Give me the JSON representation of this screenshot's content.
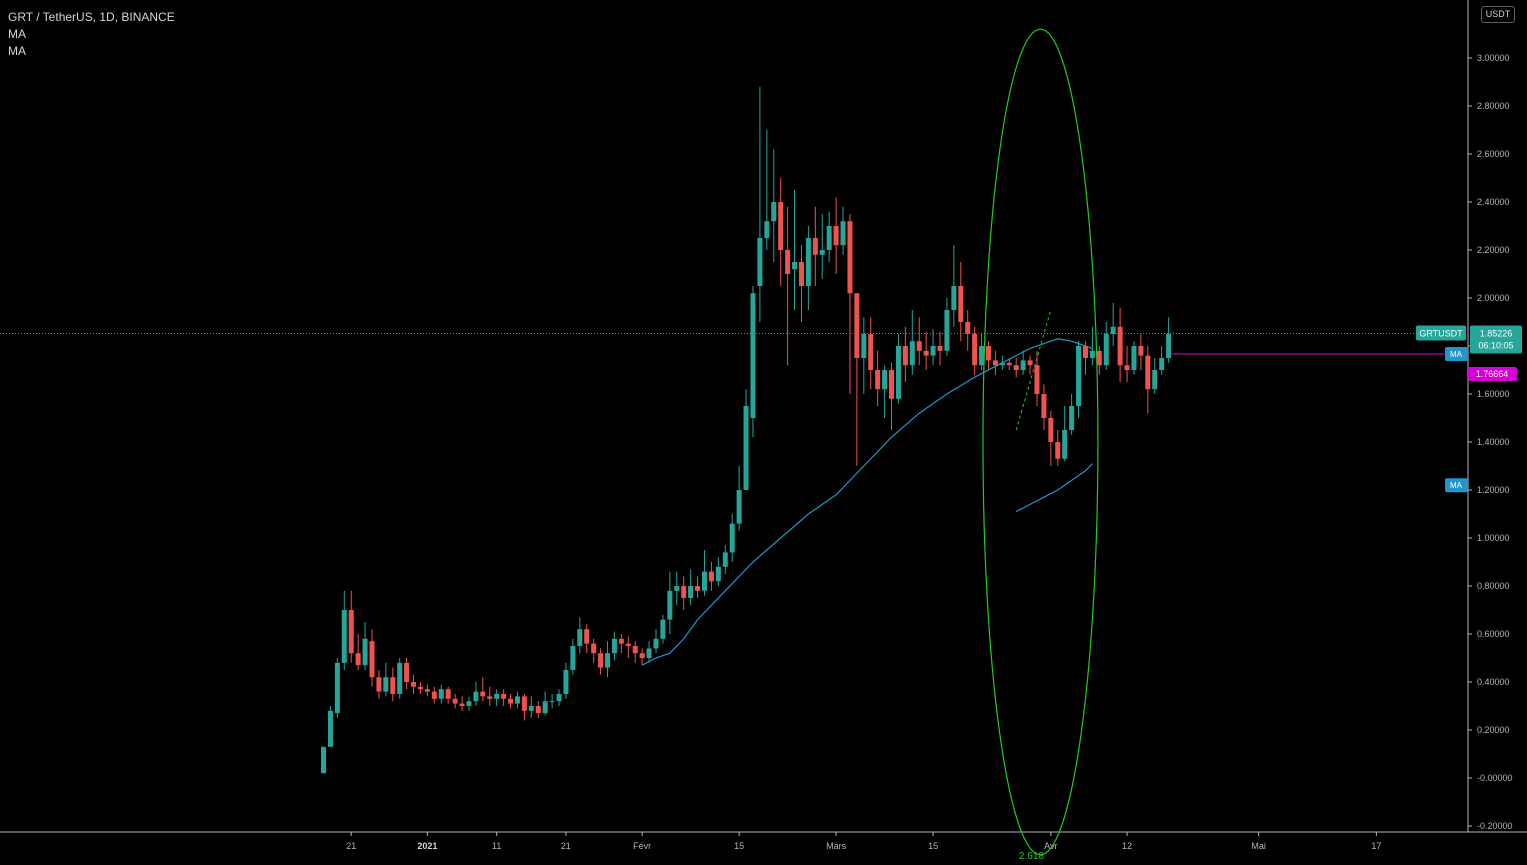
{
  "legend": {
    "symbol": "GRT / TetherUS, 1D, BINANCE",
    "ma1": "MA",
    "ma2": "MA"
  },
  "currency": "USDT",
  "price_label": {
    "symbol": "GRTUSDT",
    "price": "1.85226",
    "countdown": "06:10:05"
  },
  "ma_labels": {
    "ma_fast": "MA",
    "ma_fast_value": "1.76664",
    "ma_slow": "MA"
  },
  "annotation": {
    "fib_label": "2.618"
  },
  "colors": {
    "background": "#000000",
    "up": "#26a69a",
    "down": "#ef5350",
    "ma_line": "#2196c8",
    "ma_fast": "#d500d5",
    "ellipse": "#22cc22",
    "grid_dotted": "#26a69a",
    "axis_text": "#b2b5be"
  },
  "chart_data": {
    "type": "candlestick",
    "title": "GRT / TetherUS, 1D, BINANCE",
    "xlabel": "",
    "ylabel": "USDT",
    "ylim": [
      -0.22,
      3.22
    ],
    "grid": false,
    "y_ticks": [
      "3.00000",
      "2.80000",
      "2.60000",
      "2.40000",
      "2.20000",
      "2.00000",
      "1.80000",
      "1.60000",
      "1.40000",
      "1.20000",
      "1.00000",
      "0.80000",
      "0.60000",
      "0.40000",
      "0.20000",
      "-0.00000",
      "-0.20000"
    ],
    "x_ticks": [
      {
        "label": "21",
        "day": 4
      },
      {
        "label": "2021",
        "day": 15
      },
      {
        "label": "11",
        "day": 25
      },
      {
        "label": "21",
        "day": 35
      },
      {
        "label": "Févr",
        "day": 46
      },
      {
        "label": "15",
        "day": 60
      },
      {
        "label": "Mars",
        "day": 74
      },
      {
        "label": "15",
        "day": 88
      },
      {
        "label": "Avr",
        "day": 105
      },
      {
        "label": "12",
        "day": 116
      },
      {
        "label": "Mai",
        "day": 135
      },
      {
        "label": "17",
        "day": 152
      }
    ],
    "last_price": 1.85226,
    "ma_fast_last": 1.76664,
    "candles": [
      [
        0.02,
        0.13,
        0.13,
        0.02
      ],
      [
        0.13,
        0.28,
        0.3,
        0.13
      ],
      [
        0.27,
        0.48,
        0.5,
        0.25
      ],
      [
        0.48,
        0.7,
        0.78,
        0.45
      ],
      [
        0.7,
        0.52,
        0.78,
        0.48
      ],
      [
        0.52,
        0.47,
        0.6,
        0.45
      ],
      [
        0.47,
        0.58,
        0.65,
        0.45
      ],
      [
        0.57,
        0.42,
        0.62,
        0.38
      ],
      [
        0.42,
        0.36,
        0.45,
        0.33
      ],
      [
        0.36,
        0.42,
        0.48,
        0.34
      ],
      [
        0.42,
        0.35,
        0.46,
        0.32
      ],
      [
        0.35,
        0.48,
        0.5,
        0.33
      ],
      [
        0.48,
        0.4,
        0.5,
        0.37
      ],
      [
        0.4,
        0.38,
        0.43,
        0.35
      ],
      [
        0.38,
        0.37,
        0.4,
        0.35
      ],
      [
        0.37,
        0.36,
        0.39,
        0.34
      ],
      [
        0.36,
        0.33,
        0.38,
        0.31
      ],
      [
        0.33,
        0.37,
        0.39,
        0.31
      ],
      [
        0.37,
        0.33,
        0.38,
        0.31
      ],
      [
        0.33,
        0.31,
        0.35,
        0.29
      ],
      [
        0.31,
        0.3,
        0.34,
        0.28
      ],
      [
        0.3,
        0.32,
        0.34,
        0.28
      ],
      [
        0.32,
        0.36,
        0.4,
        0.3
      ],
      [
        0.36,
        0.34,
        0.42,
        0.32
      ],
      [
        0.34,
        0.33,
        0.38,
        0.3
      ],
      [
        0.33,
        0.35,
        0.37,
        0.3
      ],
      [
        0.35,
        0.33,
        0.37,
        0.3
      ],
      [
        0.33,
        0.31,
        0.35,
        0.29
      ],
      [
        0.31,
        0.34,
        0.36,
        0.29
      ],
      [
        0.34,
        0.28,
        0.35,
        0.24
      ],
      [
        0.28,
        0.3,
        0.34,
        0.25
      ],
      [
        0.3,
        0.27,
        0.32,
        0.25
      ],
      [
        0.27,
        0.32,
        0.36,
        0.26
      ],
      [
        0.32,
        0.32,
        0.35,
        0.29
      ],
      [
        0.32,
        0.35,
        0.37,
        0.3
      ],
      [
        0.35,
        0.45,
        0.48,
        0.33
      ],
      [
        0.45,
        0.55,
        0.58,
        0.43
      ],
      [
        0.55,
        0.62,
        0.67,
        0.52
      ],
      [
        0.62,
        0.56,
        0.64,
        0.52
      ],
      [
        0.56,
        0.52,
        0.58,
        0.48
      ],
      [
        0.52,
        0.46,
        0.54,
        0.43
      ],
      [
        0.46,
        0.52,
        0.57,
        0.42
      ],
      [
        0.52,
        0.58,
        0.61,
        0.49
      ],
      [
        0.58,
        0.56,
        0.6,
        0.52
      ],
      [
        0.56,
        0.55,
        0.59,
        0.5
      ],
      [
        0.55,
        0.52,
        0.57,
        0.48
      ],
      [
        0.52,
        0.5,
        0.54,
        0.47
      ],
      [
        0.5,
        0.54,
        0.57,
        0.48
      ],
      [
        0.54,
        0.58,
        0.62,
        0.52
      ],
      [
        0.58,
        0.66,
        0.68,
        0.56
      ],
      [
        0.66,
        0.78,
        0.86,
        0.6
      ],
      [
        0.78,
        0.8,
        0.86,
        0.72
      ],
      [
        0.8,
        0.75,
        0.84,
        0.7
      ],
      [
        0.75,
        0.8,
        0.87,
        0.72
      ],
      [
        0.8,
        0.78,
        0.84,
        0.75
      ],
      [
        0.78,
        0.86,
        0.95,
        0.76
      ],
      [
        0.86,
        0.82,
        0.9,
        0.78
      ],
      [
        0.82,
        0.88,
        0.92,
        0.8
      ],
      [
        0.88,
        0.94,
        0.97,
        0.85
      ],
      [
        0.94,
        1.06,
        1.1,
        0.9
      ],
      [
        1.06,
        1.2,
        1.3,
        1.03
      ],
      [
        1.2,
        1.55,
        1.62,
        1.2
      ],
      [
        1.5,
        2.02,
        2.05,
        1.42
      ],
      [
        2.05,
        2.25,
        2.88,
        1.9
      ],
      [
        2.25,
        2.32,
        2.7,
        2.2
      ],
      [
        2.32,
        2.4,
        2.62,
        2.15
      ],
      [
        2.4,
        2.2,
        2.5,
        2.05
      ],
      [
        2.2,
        2.1,
        2.38,
        1.72
      ],
      [
        2.12,
        2.15,
        2.45,
        1.95
      ],
      [
        2.15,
        2.05,
        2.22,
        1.9
      ],
      [
        2.05,
        2.25,
        2.3,
        1.95
      ],
      [
        2.25,
        2.18,
        2.38,
        2.05
      ],
      [
        2.18,
        2.2,
        2.35,
        2.08
      ],
      [
        2.2,
        2.3,
        2.36,
        2.15
      ],
      [
        2.3,
        2.22,
        2.42,
        2.1
      ],
      [
        2.22,
        2.32,
        2.38,
        2.18
      ],
      [
        2.32,
        2.02,
        2.35,
        1.6
      ],
      [
        2.02,
        1.75,
        2.0,
        1.3
      ],
      [
        1.75,
        1.85,
        1.92,
        1.6
      ],
      [
        1.85,
        1.7,
        1.92,
        1.62
      ],
      [
        1.7,
        1.62,
        1.78,
        1.55
      ],
      [
        1.62,
        1.7,
        1.72,
        1.5
      ],
      [
        1.7,
        1.58,
        1.73,
        1.45
      ],
      [
        1.58,
        1.8,
        1.85,
        1.56
      ],
      [
        1.8,
        1.72,
        1.88,
        1.65
      ],
      [
        1.72,
        1.82,
        1.95,
        1.68
      ],
      [
        1.82,
        1.78,
        1.92,
        1.72
      ],
      [
        1.78,
        1.76,
        1.86,
        1.7
      ],
      [
        1.76,
        1.8,
        1.87,
        1.72
      ],
      [
        1.8,
        1.78,
        1.86,
        1.72
      ],
      [
        1.78,
        1.95,
        2.0,
        1.76
      ],
      [
        1.95,
        2.05,
        2.22,
        1.88
      ],
      [
        2.05,
        1.9,
        2.15,
        1.82
      ],
      [
        1.9,
        1.85,
        1.95,
        1.78
      ],
      [
        1.85,
        1.72,
        1.88,
        1.68
      ],
      [
        1.72,
        1.8,
        1.85,
        1.7
      ],
      [
        1.8,
        1.74,
        1.82,
        1.7
      ],
      [
        1.74,
        1.72,
        1.78,
        1.68
      ],
      [
        1.72,
        1.73,
        1.76,
        1.7
      ],
      [
        1.73,
        1.72,
        1.75,
        1.7
      ],
      [
        1.72,
        1.7,
        1.75,
        1.67
      ],
      [
        1.7,
        1.74,
        1.78,
        1.68
      ],
      [
        1.74,
        1.72,
        1.76,
        1.68
      ],
      [
        1.72,
        1.6,
        1.78,
        1.55
      ],
      [
        1.6,
        1.5,
        1.64,
        1.45
      ],
      [
        1.5,
        1.4,
        1.53,
        1.3
      ],
      [
        1.4,
        1.33,
        1.45,
        1.3
      ],
      [
        1.33,
        1.45,
        1.55,
        1.32
      ],
      [
        1.45,
        1.55,
        1.6,
        1.43
      ],
      [
        1.55,
        1.8,
        1.82,
        1.5
      ],
      [
        1.8,
        1.75,
        1.82,
        1.68
      ],
      [
        1.75,
        1.78,
        1.88,
        1.72
      ],
      [
        1.78,
        1.72,
        1.8,
        1.68
      ],
      [
        1.72,
        1.85,
        1.9,
        1.7
      ],
      [
        1.85,
        1.88,
        1.98,
        1.8
      ],
      [
        1.88,
        1.72,
        1.96,
        1.65
      ],
      [
        1.72,
        1.7,
        1.8,
        1.65
      ],
      [
        1.7,
        1.8,
        1.82,
        1.68
      ],
      [
        1.8,
        1.76,
        1.85,
        1.7
      ],
      [
        1.76,
        1.62,
        1.8,
        1.52
      ],
      [
        1.62,
        1.7,
        1.75,
        1.6
      ],
      [
        1.7,
        1.75,
        1.8,
        1.68
      ],
      [
        1.75,
        1.85,
        1.92,
        1.73
      ]
    ],
    "ma_slow_series": [
      [
        46,
        0.47
      ],
      [
        48,
        0.5
      ],
      [
        50,
        0.52
      ],
      [
        52,
        0.58
      ],
      [
        54,
        0.66
      ],
      [
        58,
        0.78
      ],
      [
        62,
        0.9
      ],
      [
        66,
        1.0
      ],
      [
        70,
        1.1
      ],
      [
        74,
        1.18
      ],
      [
        78,
        1.3
      ],
      [
        82,
        1.42
      ],
      [
        86,
        1.52
      ],
      [
        90,
        1.6
      ],
      [
        94,
        1.67
      ],
      [
        98,
        1.73
      ],
      [
        100,
        1.76
      ],
      [
        102,
        1.79
      ],
      [
        104,
        1.81
      ],
      [
        106,
        1.83
      ],
      [
        108,
        1.82
      ],
      [
        110,
        1.8
      ],
      [
        111,
        1.79
      ]
    ],
    "ma_short_series": [
      [
        100,
        1.11
      ],
      [
        102,
        1.14
      ],
      [
        104,
        1.17
      ],
      [
        106,
        1.2
      ],
      [
        108,
        1.24
      ],
      [
        110,
        1.28
      ],
      [
        111,
        1.31
      ]
    ],
    "dashed_path": [
      [
        100,
        1.45
      ],
      [
        103,
        1.75
      ],
      [
        105,
        1.95
      ]
    ],
    "ellipse": {
      "center_day": 103.5,
      "center_price": 1.4,
      "radius_days": 8.3,
      "radius_price": 1.72
    }
  }
}
